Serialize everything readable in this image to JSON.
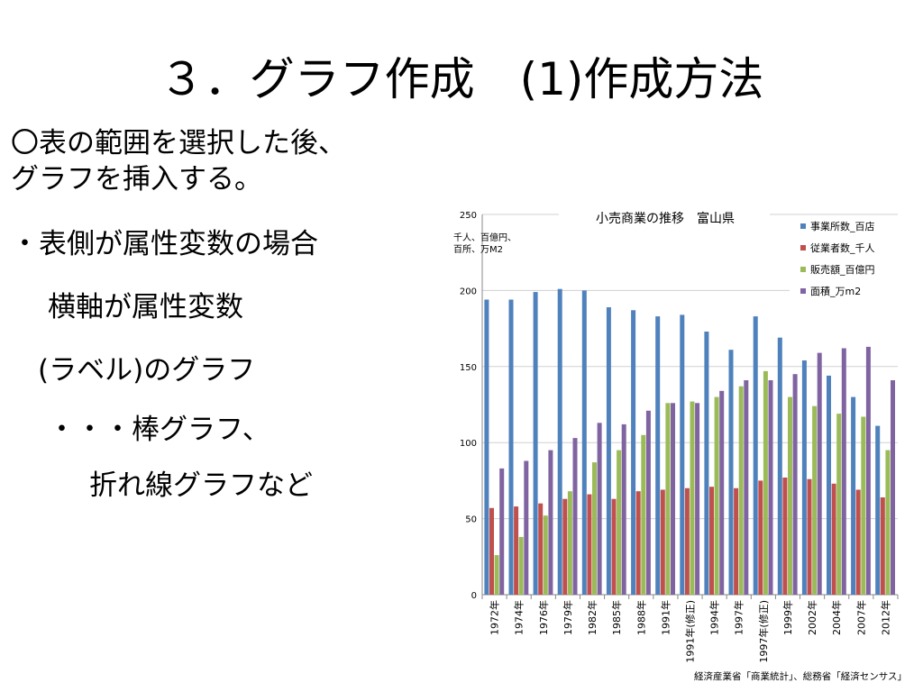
{
  "slide": {
    "title": "３．グラフ作成　(1)作成方法",
    "lines": [
      "〇表の範囲を選択した後、",
      "グラフを挿入する。",
      "・表側が属性変数の場合",
      "　横軸が属性変数",
      "(ラベル)のグラフ",
      "　・・・棒グラフ、",
      "　　折れ線グラフなど"
    ]
  },
  "chart_data": {
    "type": "bar",
    "title": "小売商業の推移　富山県",
    "unit_label": [
      "千人、百億円、",
      "百所、万M2"
    ],
    "categories": [
      "1972年",
      "1974年",
      "1976年",
      "1979年",
      "1982年",
      "1985年",
      "1988年",
      "1991年",
      "1991年(修正)",
      "1994年",
      "1997年",
      "1997年(修正)",
      "1999年",
      "2002年",
      "2004年",
      "2007年",
      "2012年"
    ],
    "series": [
      {
        "name": "事業所数_百店",
        "color": "#4f81bd",
        "values": [
          194,
          194,
          199,
          201,
          200,
          189,
          187,
          183,
          184,
          173,
          161,
          183,
          169,
          154,
          144,
          130,
          111
        ]
      },
      {
        "name": "従業者数_千人",
        "color": "#c0504d",
        "values": [
          57,
          58,
          60,
          63,
          66,
          63,
          68,
          69,
          70,
          71,
          70,
          75,
          77,
          76,
          73,
          69,
          64
        ]
      },
      {
        "name": "販売額_百億円",
        "color": "#9bbb59",
        "values": [
          26,
          38,
          52,
          68,
          87,
          95,
          105,
          126,
          127,
          130,
          137,
          147,
          130,
          124,
          119,
          117,
          95
        ]
      },
      {
        "name": "面積_万m2",
        "color": "#8064a2",
        "values": [
          83,
          88,
          95,
          103,
          113,
          112,
          121,
          126,
          126,
          134,
          141,
          141,
          145,
          159,
          162,
          163,
          141
        ]
      }
    ],
    "ylim": [
      0,
      250
    ],
    "yticks": [
      0,
      50,
      100,
      150,
      200,
      250
    ],
    "grid": true,
    "legend": "top-right",
    "source": "経済産業省「商業統計」、総務省「経済センサス」"
  }
}
